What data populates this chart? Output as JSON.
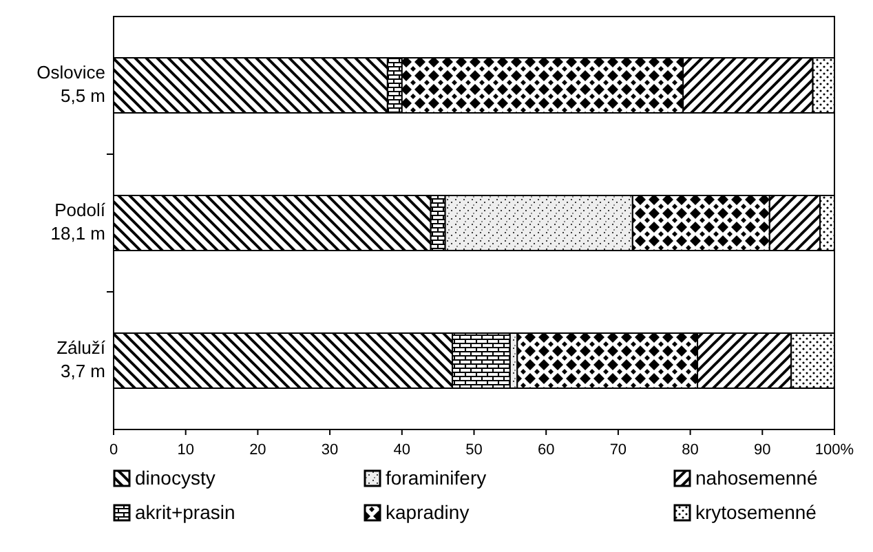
{
  "chart_data": {
    "type": "bar",
    "orientation": "horizontal",
    "stacked": true,
    "categories": [
      "Oslovice\n5,5 m",
      "Podolí\n18,1 m",
      "Záluží\n3,7 m"
    ],
    "series": [
      {
        "name": "dinocysty",
        "color": "#000000",
        "values": [
          38,
          44,
          47
        ]
      },
      {
        "name": "akrit+prasin",
        "color": "#000000",
        "values": [
          2,
          2,
          8
        ]
      },
      {
        "name": "foraminifery",
        "color": "#000000",
        "values": [
          0,
          26,
          1
        ]
      },
      {
        "name": "kapradiny",
        "color": "#000000",
        "values": [
          39,
          19,
          25
        ]
      },
      {
        "name": "nahosemenné",
        "color": "#000000",
        "values": [
          18,
          7,
          13
        ]
      },
      {
        "name": "krytosemenné",
        "color": "#000000",
        "values": [
          3,
          2,
          6
        ]
      }
    ],
    "xlim": [
      0,
      100
    ],
    "xticks": [
      0,
      10,
      20,
      30,
      40,
      50,
      60,
      70,
      80,
      90,
      {
        "value": 100,
        "label": "100%"
      }
    ],
    "legend": "bottom"
  }
}
